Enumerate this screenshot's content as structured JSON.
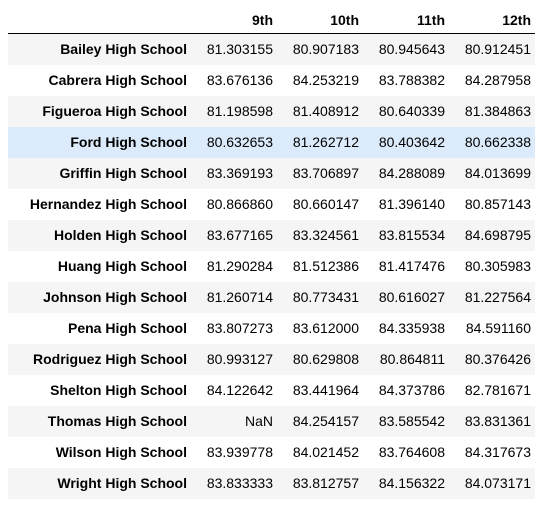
{
  "table": {
    "index_header": "",
    "columns": [
      "9th",
      "10th",
      "11th",
      "12th"
    ],
    "rows": [
      {
        "school": "Bailey High School",
        "values": [
          "81.303155",
          "80.907183",
          "80.945643",
          "80.912451"
        ]
      },
      {
        "school": "Cabrera High School",
        "values": [
          "83.676136",
          "84.253219",
          "83.788382",
          "84.287958"
        ]
      },
      {
        "school": "Figueroa High School",
        "values": [
          "81.198598",
          "81.408912",
          "80.640339",
          "81.384863"
        ]
      },
      {
        "school": "Ford High School",
        "values": [
          "80.632653",
          "81.262712",
          "80.403642",
          "80.662338"
        ]
      },
      {
        "school": "Griffin High School",
        "values": [
          "83.369193",
          "83.706897",
          "84.288089",
          "84.013699"
        ]
      },
      {
        "school": "Hernandez High School",
        "values": [
          "80.866860",
          "80.660147",
          "81.396140",
          "80.857143"
        ]
      },
      {
        "school": "Holden High School",
        "values": [
          "83.677165",
          "83.324561",
          "83.815534",
          "84.698795"
        ]
      },
      {
        "school": "Huang High School",
        "values": [
          "81.290284",
          "81.512386",
          "81.417476",
          "80.305983"
        ]
      },
      {
        "school": "Johnson High School",
        "values": [
          "81.260714",
          "80.773431",
          "80.616027",
          "81.227564"
        ]
      },
      {
        "school": "Pena High School",
        "values": [
          "83.807273",
          "83.612000",
          "84.335938",
          "84.591160"
        ]
      },
      {
        "school": "Rodriguez High School",
        "values": [
          "80.993127",
          "80.629808",
          "80.864811",
          "80.376426"
        ]
      },
      {
        "school": "Shelton High School",
        "values": [
          "84.122642",
          "83.441964",
          "84.373786",
          "82.781671"
        ]
      },
      {
        "school": "Thomas High School",
        "values": [
          "NaN",
          "84.254157",
          "83.585542",
          "83.831361"
        ]
      },
      {
        "school": "Wilson High School",
        "values": [
          "83.939778",
          "84.021452",
          "83.764608",
          "84.317673"
        ]
      },
      {
        "school": "Wright High School",
        "values": [
          "83.833333",
          "83.812757",
          "84.156322",
          "84.073171"
        ]
      }
    ]
  },
  "colors": {
    "row_stripe": "#f5f5f5",
    "row_hover": "#dcebfb",
    "header_rule": "#000000"
  }
}
